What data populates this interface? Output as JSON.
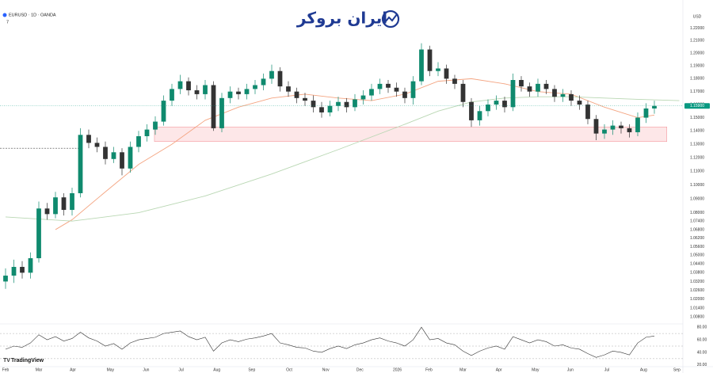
{
  "header": {
    "symbol": "EURUSD · 1D · OANDA",
    "indicator": "7"
  },
  "logo": "ایران بروکر",
  "footer": "TradingView",
  "chart_data": [
    {
      "type": "candlestick",
      "currency": "USD",
      "log_scale": true,
      "up_color": "#0f8a6e",
      "down_color": "#333333",
      "open": [
        1.032,
        1.036,
        1.042,
        1.038,
        1.048,
        1.083,
        1.079,
        1.091,
        1.082,
        1.094,
        1.137,
        1.131,
        1.128,
        1.119,
        1.124,
        1.112,
        1.128,
        1.136,
        1.141,
        1.147,
        1.163,
        1.172,
        1.178,
        1.171,
        1.168,
        1.175,
        1.142,
        1.165,
        1.17,
        1.168,
        1.172,
        1.175,
        1.18,
        1.186,
        1.174,
        1.17,
        1.165,
        1.163,
        1.158,
        1.154,
        1.159,
        1.162,
        1.158,
        1.164,
        1.167,
        1.172,
        1.176,
        1.173,
        1.17,
        1.165,
        1.178,
        1.203,
        1.186,
        1.188,
        1.18,
        1.176,
        1.162,
        1.148,
        1.155,
        1.16,
        1.163,
        1.158,
        1.179,
        1.174,
        1.17,
        1.176,
        1.172,
        1.166,
        1.168,
        1.163,
        1.16,
        1.149,
        1.138,
        1.141,
        1.144,
        1.142,
        1.139,
        1.15,
        1.157
      ],
      "high": [
        1.041,
        1.047,
        1.046,
        1.052,
        1.088,
        1.087,
        1.095,
        1.094,
        1.098,
        1.142,
        1.141,
        1.135,
        1.132,
        1.128,
        1.127,
        1.132,
        1.14,
        1.145,
        1.151,
        1.167,
        1.176,
        1.183,
        1.181,
        1.175,
        1.179,
        1.178,
        1.169,
        1.174,
        1.173,
        1.176,
        1.179,
        1.184,
        1.191,
        1.189,
        1.178,
        1.173,
        1.169,
        1.167,
        1.162,
        1.163,
        1.166,
        1.165,
        1.168,
        1.171,
        1.176,
        1.18,
        1.179,
        1.177,
        1.173,
        1.182,
        1.208,
        1.206,
        1.193,
        1.191,
        1.183,
        1.179,
        1.165,
        1.159,
        1.164,
        1.167,
        1.166,
        1.184,
        1.182,
        1.177,
        1.18,
        1.179,
        1.175,
        1.172,
        1.171,
        1.167,
        1.163,
        1.152,
        1.145,
        1.148,
        1.147,
        1.145,
        1.154,
        1.161,
        1.163
      ],
      "low": [
        1.027,
        1.031,
        1.034,
        1.034,
        1.045,
        1.075,
        1.076,
        1.078,
        1.078,
        1.091,
        1.127,
        1.124,
        1.115,
        1.116,
        1.107,
        1.109,
        1.124,
        1.132,
        1.137,
        1.144,
        1.159,
        1.168,
        1.167,
        1.164,
        1.164,
        1.14,
        1.139,
        1.161,
        1.164,
        1.164,
        1.168,
        1.171,
        1.176,
        1.17,
        1.166,
        1.161,
        1.159,
        1.154,
        1.15,
        1.151,
        1.155,
        1.154,
        1.155,
        1.16,
        1.163,
        1.168,
        1.169,
        1.166,
        1.161,
        1.16,
        1.175,
        1.182,
        1.182,
        1.176,
        1.172,
        1.158,
        1.143,
        1.144,
        1.151,
        1.156,
        1.154,
        1.155,
        1.17,
        1.166,
        1.166,
        1.168,
        1.162,
        1.162,
        1.159,
        1.156,
        1.145,
        1.133,
        1.134,
        1.137,
        1.138,
        1.135,
        1.136,
        1.146,
        1.153
      ],
      "close": [
        1.036,
        1.042,
        1.038,
        1.048,
        1.083,
        1.079,
        1.091,
        1.082,
        1.094,
        1.137,
        1.131,
        1.128,
        1.119,
        1.124,
        1.112,
        1.128,
        1.136,
        1.141,
        1.147,
        1.163,
        1.172,
        1.178,
        1.171,
        1.168,
        1.175,
        1.142,
        1.165,
        1.17,
        1.168,
        1.172,
        1.175,
        1.18,
        1.186,
        1.174,
        1.17,
        1.165,
        1.163,
        1.158,
        1.154,
        1.159,
        1.162,
        1.158,
        1.164,
        1.167,
        1.172,
        1.176,
        1.173,
        1.17,
        1.165,
        1.178,
        1.203,
        1.186,
        1.188,
        1.18,
        1.176,
        1.162,
        1.148,
        1.155,
        1.16,
        1.163,
        1.158,
        1.179,
        1.174,
        1.17,
        1.176,
        1.172,
        1.166,
        1.168,
        1.163,
        1.16,
        1.149,
        1.138,
        1.141,
        1.144,
        1.142,
        1.139,
        1.15,
        1.157,
        1.159
      ],
      "lines": [
        {
          "color": "#f4a582",
          "x": [
            6,
            8,
            12,
            16,
            20,
            24,
            28,
            32,
            36,
            40,
            44,
            48,
            52,
            56,
            60,
            64,
            68,
            72,
            76,
            78
          ],
          "values": [
            1.068,
            1.075,
            1.095,
            1.115,
            1.13,
            1.148,
            1.158,
            1.165,
            1.168,
            1.165,
            1.163,
            1.168,
            1.178,
            1.18,
            1.176,
            1.17,
            1.168,
            1.158,
            1.15,
            1.152
          ]
        },
        {
          "color": "#b9d7b3",
          "x": [
            0,
            8,
            16,
            24,
            32,
            40,
            48,
            52,
            56,
            60,
            64,
            68,
            72,
            76,
            81
          ],
          "values": [
            1.077,
            1.074,
            1.08,
            1.092,
            1.108,
            1.126,
            1.145,
            1.155,
            1.162,
            1.165,
            1.166,
            1.166,
            1.165,
            1.164,
            1.163
          ]
        }
      ],
      "zone": {
        "from": 1.132,
        "to": 1.143,
        "xlim": [
          17.9,
          79.5
        ],
        "color": "#fbd3d6"
      },
      "dashed_level": {
        "value": 1.127,
        "xlim": [
          -0.667,
          9
        ]
      },
      "last_price": {
        "value": 1.159,
        "label": "1.15900",
        "color": "#089981"
      },
      "ylim": [
        1.004,
        1.243
      ],
      "yticks": [
        {
          "value": 1.22,
          "label": "1.22000"
        },
        {
          "value": 1.21,
          "label": "1.21000"
        },
        {
          "value": 1.2,
          "label": "1.20000"
        },
        {
          "value": 1.19,
          "label": "1.19000"
        },
        {
          "value": 1.18,
          "label": "1.18000"
        },
        {
          "value": 1.17,
          "label": "1.17000"
        },
        {
          "value": 1.16,
          "label": "1.16000"
        },
        {
          "value": 1.15,
          "label": "1.15000"
        },
        {
          "value": 1.14,
          "label": "1.14000"
        },
        {
          "value": 1.13,
          "label": "1.13000"
        },
        {
          "value": 1.12,
          "label": "1.12000"
        },
        {
          "value": 1.11,
          "label": "1.11000"
        },
        {
          "value": 1.1,
          "label": "1.10000"
        },
        {
          "value": 1.09,
          "label": "1.09000"
        },
        {
          "value": 1.08,
          "label": "1.08000"
        },
        {
          "value": 1.074,
          "label": "1.07400"
        },
        {
          "value": 1.068,
          "label": "1.06800"
        },
        {
          "value": 1.062,
          "label": "1.06200"
        },
        {
          "value": 1.056,
          "label": "1.05600"
        },
        {
          "value": 1.05,
          "label": "1.05000"
        },
        {
          "value": 1.044,
          "label": "1.04400"
        },
        {
          "value": 1.038,
          "label": "1.03800"
        },
        {
          "value": 1.032,
          "label": "1.03200"
        },
        {
          "value": 1.026,
          "label": "1.02600"
        },
        {
          "value": 1.02,
          "label": "1.02000"
        },
        {
          "value": 1.014,
          "label": "1.01400"
        },
        {
          "value": 1.008,
          "label": "1.00800"
        }
      ],
      "xlim": [
        -0.667,
        81.43
      ],
      "xticks": [
        {
          "value": 0,
          "label": "Feb"
        },
        {
          "value": 4,
          "label": "Mar"
        },
        {
          "value": 8.1,
          "label": "Apr"
        },
        {
          "value": 12.6,
          "label": "May"
        },
        {
          "value": 16.9,
          "label": "Jun"
        },
        {
          "value": 21.1,
          "label": "Jul"
        },
        {
          "value": 25.4,
          "label": "Aug"
        },
        {
          "value": 29.6,
          "label": "Sep"
        },
        {
          "value": 34.1,
          "label": "Oct"
        },
        {
          "value": 38.5,
          "label": "Nov"
        },
        {
          "value": 42.6,
          "label": "Dec"
        },
        {
          "value": 47.1,
          "label": "2026"
        },
        {
          "value": 50.9,
          "label": "Feb"
        },
        {
          "value": 55,
          "label": "Mar"
        },
        {
          "value": 59.3,
          "label": "Apr"
        },
        {
          "value": 63.7,
          "label": "May"
        },
        {
          "value": 67.9,
          "label": "Jun"
        },
        {
          "value": 72.3,
          "label": "Jul"
        },
        {
          "value": 76.7,
          "label": "Aug"
        },
        {
          "value": 80.7,
          "label": "Sep"
        }
      ]
    },
    {
      "type": "line",
      "color": "#333333",
      "values": [
        45,
        50,
        48,
        55,
        68,
        60,
        65,
        58,
        62,
        72,
        63,
        58,
        50,
        54,
        45,
        55,
        60,
        62,
        64,
        70,
        72,
        74,
        65,
        60,
        64,
        42,
        55,
        60,
        57,
        61,
        63,
        66,
        70,
        55,
        52,
        48,
        47,
        42,
        40,
        46,
        50,
        46,
        52,
        55,
        60,
        63,
        58,
        55,
        50,
        60,
        80,
        60,
        62,
        55,
        52,
        42,
        35,
        42,
        47,
        50,
        45,
        65,
        60,
        55,
        60,
        57,
        50,
        52,
        47,
        45,
        38,
        32,
        36,
        42,
        40,
        36,
        55,
        64,
        66
      ],
      "levels": [
        70,
        50,
        30
      ],
      "ylim": [
        16,
        84
      ],
      "yticks": [
        {
          "value": 80,
          "label": "80.00"
        },
        {
          "value": 60,
          "label": "60.00"
        },
        {
          "value": 40,
          "label": "40.00"
        },
        {
          "value": 20,
          "label": "20.00"
        }
      ]
    }
  ]
}
